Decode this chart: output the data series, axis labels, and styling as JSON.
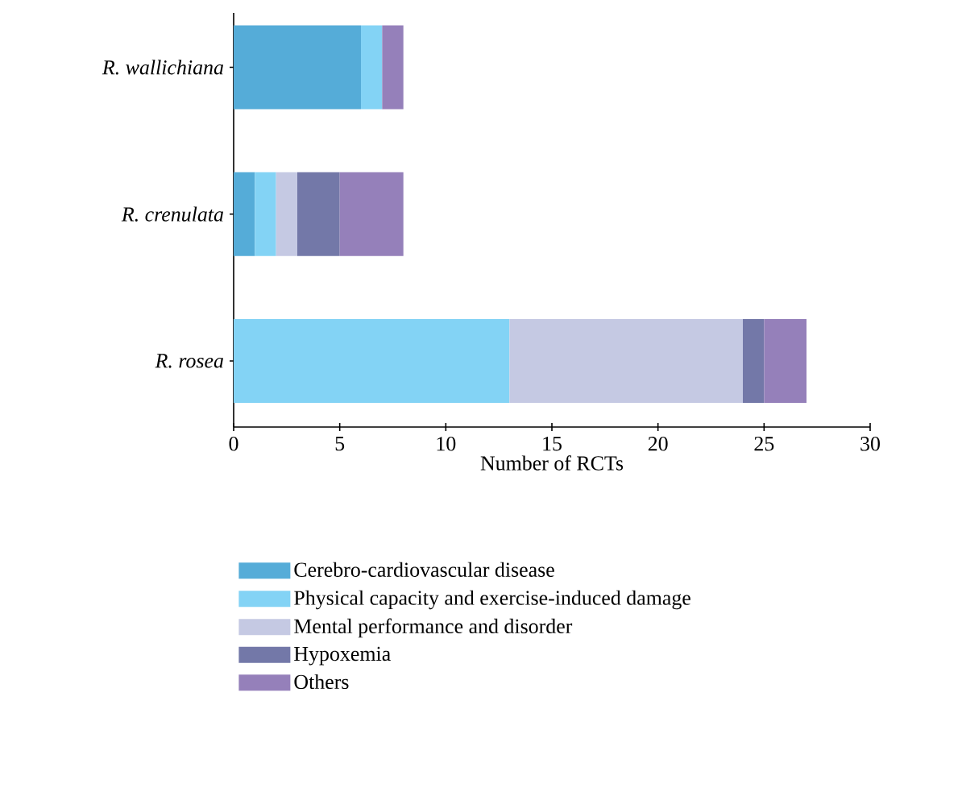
{
  "chart_data": {
    "type": "bar",
    "orientation": "horizontal",
    "stacked": true,
    "xlabel": "Number of RCTs",
    "categories": [
      "R. wallichiana",
      "R. crenulata",
      "R. rosea"
    ],
    "series": [
      {
        "name": "Cerebro-cardiovascular disease",
        "color": "#55acd8",
        "values": [
          6,
          1,
          0
        ]
      },
      {
        "name": "Physical capacity and exercise-induced damage",
        "color": "#83d3f5",
        "values": [
          1,
          1,
          13
        ]
      },
      {
        "name": "Mental performance and disorder",
        "color": "#c5c9e3",
        "values": [
          0,
          1,
          11
        ]
      },
      {
        "name": "Hypoxemia",
        "color": "#7378a8",
        "values": [
          0,
          2,
          1
        ]
      },
      {
        "name": "Others",
        "color": "#9580ba",
        "values": [
          1,
          3,
          2
        ]
      }
    ],
    "xlim": [
      0,
      30
    ],
    "xticks": [
      0,
      5,
      10,
      15,
      20,
      25,
      30
    ],
    "legend": "bottom",
    "grid": false
  }
}
